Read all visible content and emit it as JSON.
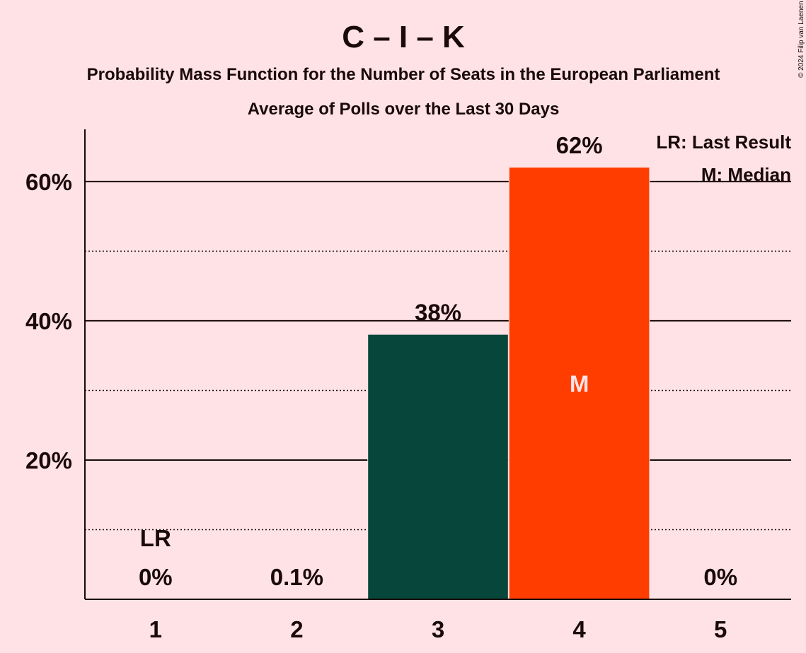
{
  "chart_data": {
    "type": "bar",
    "title": "C – I – K",
    "subtitle": "Probability Mass Function for the Number of Seats in the European Parliament",
    "subtitle2": "Average of Polls over the Last 30 Days",
    "categories": [
      "1",
      "2",
      "3",
      "4",
      "5"
    ],
    "values": [
      0,
      0.1,
      38,
      62,
      0
    ],
    "value_labels": [
      "0%",
      "0.1%",
      "38%",
      "62%",
      "0%"
    ],
    "bar_colors": [
      "#06463B",
      "#06463B",
      "#06463B",
      "#FF3D00",
      "#06463B"
    ],
    "ylim": [
      0,
      67.5
    ],
    "yticks": [
      20,
      40,
      60
    ],
    "ytick_labels": [
      "20%",
      "40%",
      "60%"
    ],
    "minor_gridlines": [
      10,
      30,
      50
    ],
    "last_result": {
      "category": "1",
      "label": "LR"
    },
    "median": {
      "category": "4",
      "label": "M"
    },
    "legend": [
      "LR: Last Result",
      "M: Median"
    ],
    "legend_position": "top-right",
    "copyright": "© 2024 Filip van Laenen"
  }
}
